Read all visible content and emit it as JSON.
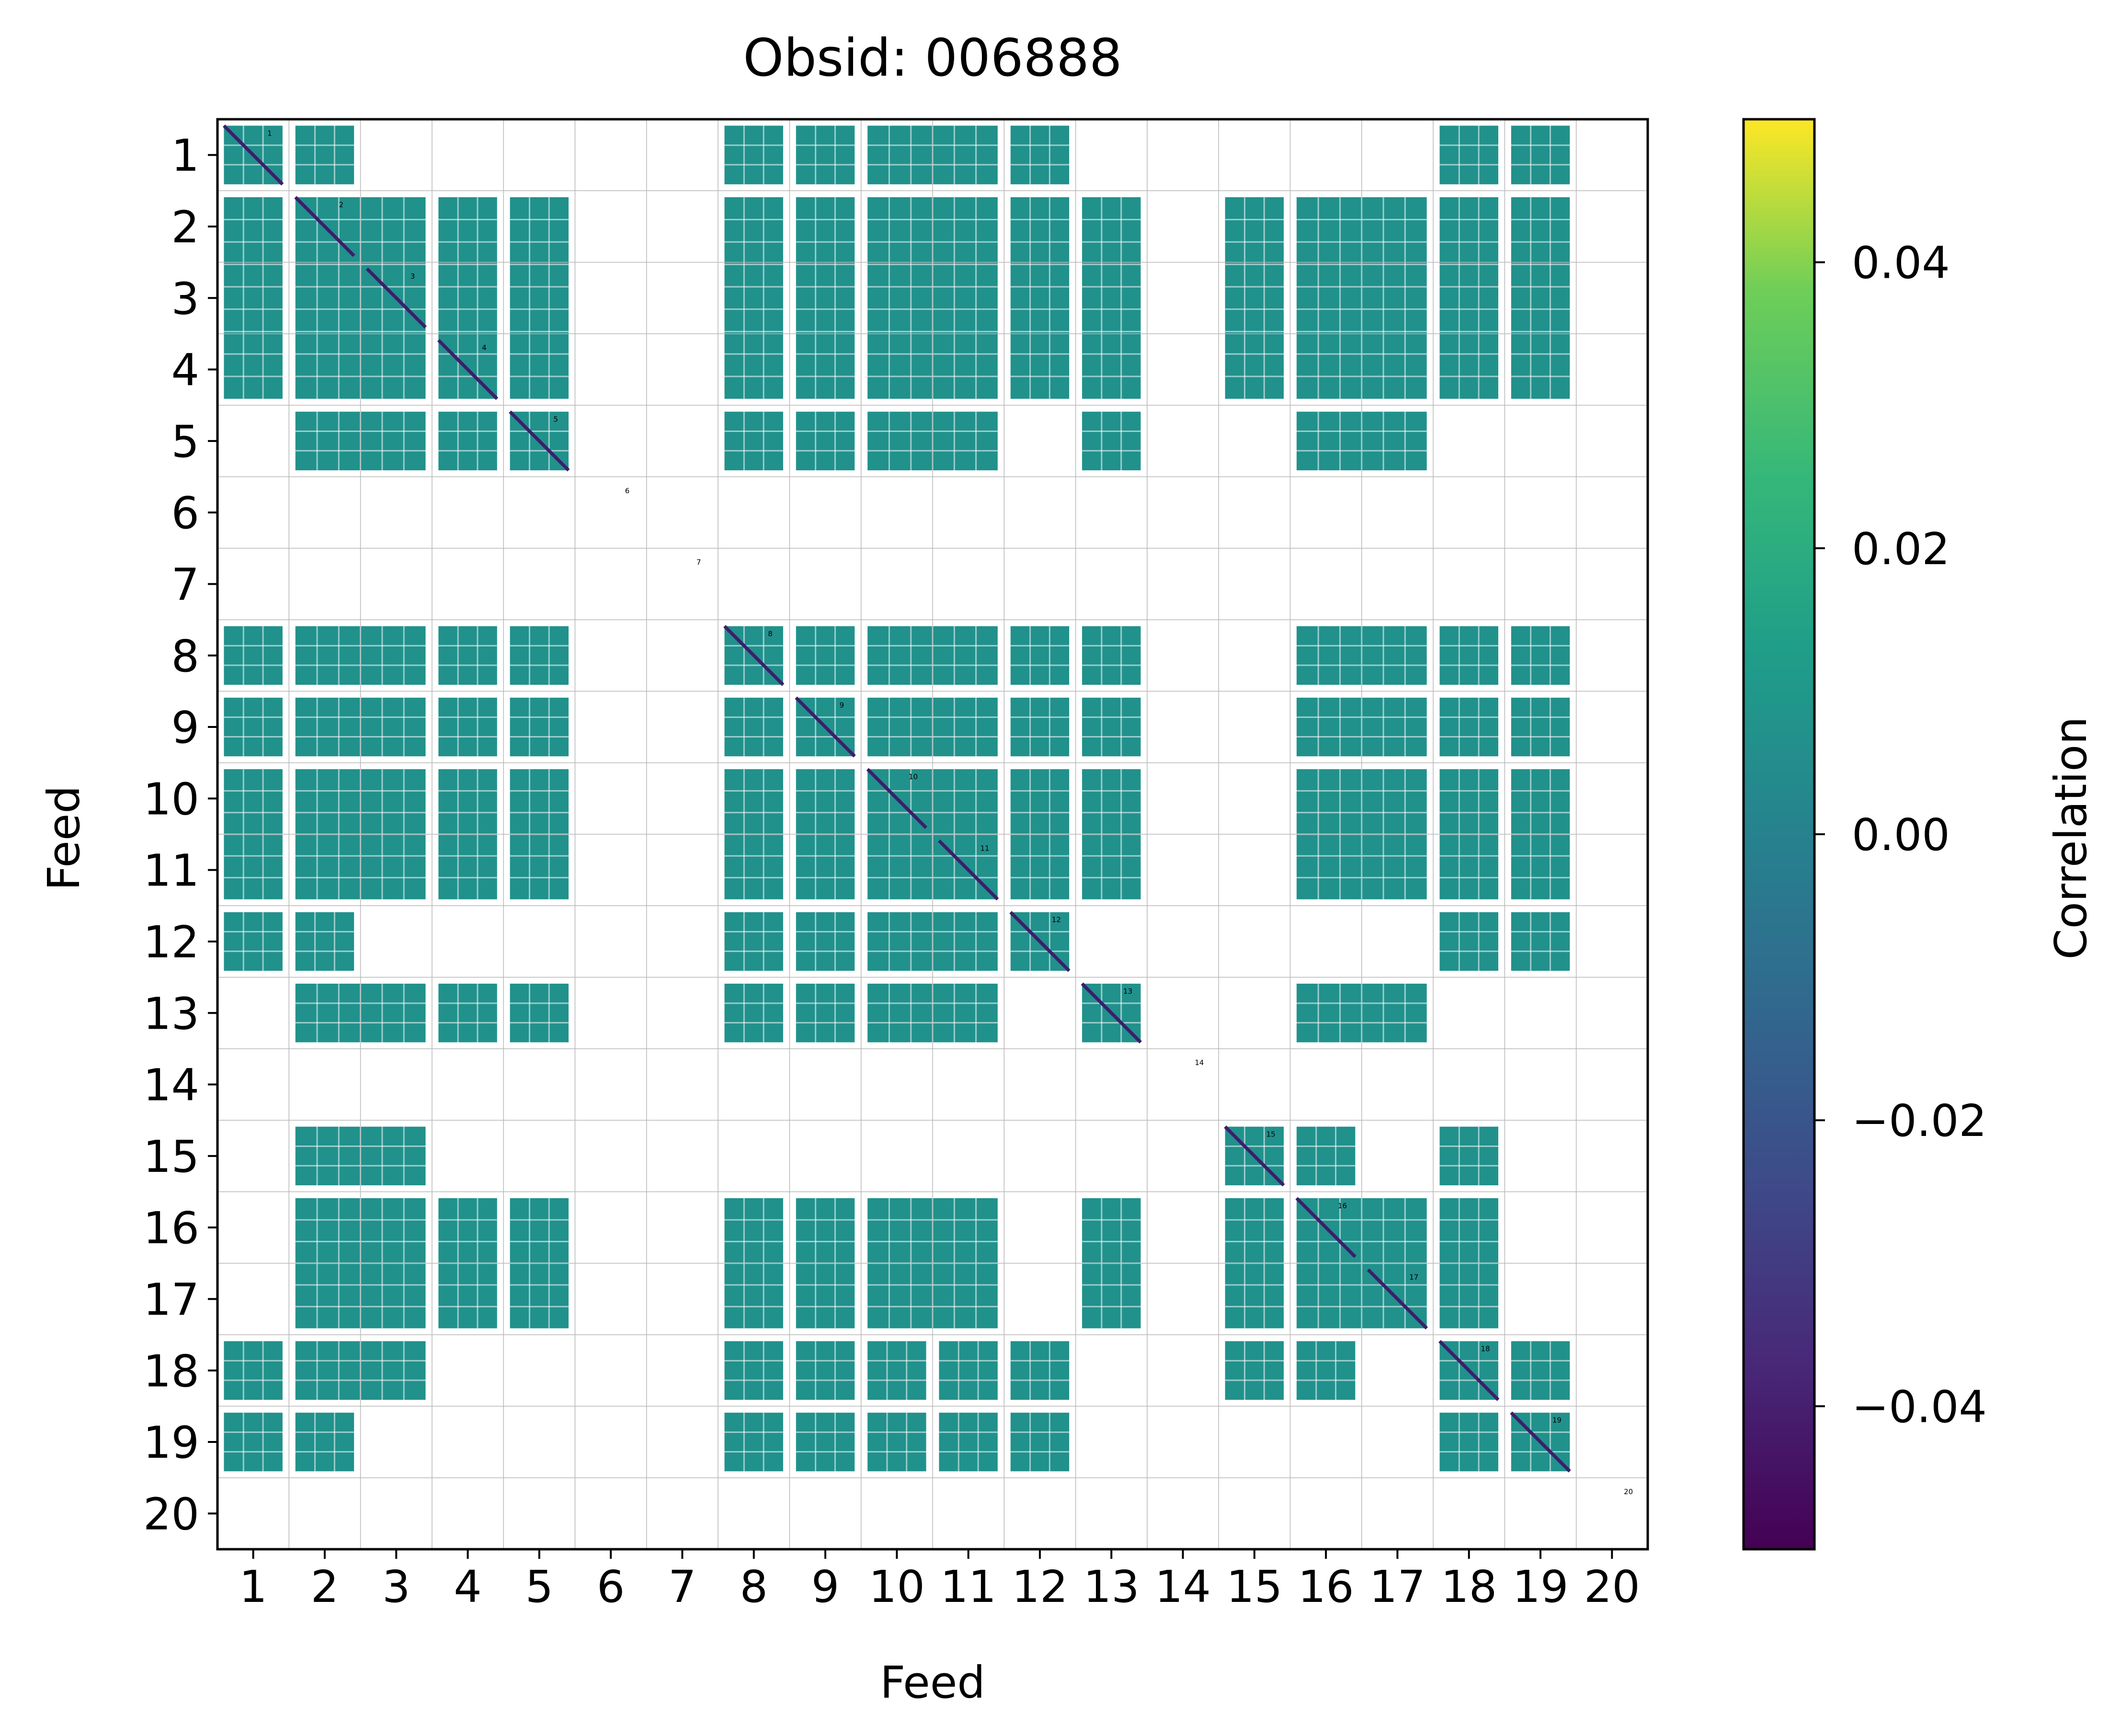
{
  "chart_data": {
    "type": "heatmap",
    "title": "Obsid: 006888",
    "xlabel": "Feed",
    "ylabel": "Feed",
    "x_tick_labels": [
      "1",
      "2",
      "3",
      "4",
      "5",
      "6",
      "7",
      "8",
      "9",
      "10",
      "11",
      "12",
      "13",
      "14",
      "15",
      "16",
      "17",
      "18",
      "19",
      "20"
    ],
    "y_tick_labels": [
      "1",
      "2",
      "3",
      "4",
      "5",
      "6",
      "7",
      "8",
      "9",
      "10",
      "11",
      "12",
      "13",
      "14",
      "15",
      "16",
      "17",
      "18",
      "19",
      "20"
    ],
    "diagonal_labels": [
      "1",
      "2",
      "3",
      "4",
      "5",
      "6",
      "7",
      "8",
      "9",
      "10",
      "11",
      "12",
      "13",
      "14",
      "15",
      "16",
      "17",
      "18",
      "19",
      "20"
    ],
    "colorbar": {
      "label": "Correlation",
      "range": [
        -0.05,
        0.05
      ],
      "ticks": [
        -0.04,
        -0.02,
        0.0,
        0.02,
        0.04
      ],
      "tick_labels": [
        "−0.04",
        "−0.02",
        "0.00",
        "0.02",
        "0.04"
      ],
      "colormap": "viridis"
    },
    "colors": {
      "zero_fill": "#21918c",
      "diagonal": "#3b1f6b",
      "grid": "#b8b8b8",
      "background": "#ffffff"
    },
    "active_feeds": [
      1,
      2,
      3,
      4,
      5,
      8,
      9,
      10,
      11,
      12,
      13,
      15,
      16,
      17,
      18,
      19
    ],
    "inactive_feeds": [
      6,
      7,
      14,
      20
    ],
    "blocks": [
      {
        "rows": [
          1,
          1
        ],
        "cols": [
          1,
          1
        ]
      },
      {
        "rows": [
          1,
          1
        ],
        "cols": [
          2,
          2
        ]
      },
      {
        "rows": [
          1,
          1
        ],
        "cols": [
          8,
          8
        ]
      },
      {
        "rows": [
          1,
          1
        ],
        "cols": [
          9,
          9
        ]
      },
      {
        "rows": [
          1,
          1
        ],
        "cols": [
          10,
          11
        ]
      },
      {
        "rows": [
          1,
          1
        ],
        "cols": [
          12,
          12
        ]
      },
      {
        "rows": [
          1,
          1
        ],
        "cols": [
          18,
          18
        ]
      },
      {
        "rows": [
          1,
          1
        ],
        "cols": [
          19,
          19
        ]
      },
      {
        "rows": [
          2,
          4
        ],
        "cols": [
          1,
          1
        ]
      },
      {
        "rows": [
          2,
          4
        ],
        "cols": [
          2,
          3
        ]
      },
      {
        "rows": [
          2,
          4
        ],
        "cols": [
          4,
          4
        ]
      },
      {
        "rows": [
          2,
          4
        ],
        "cols": [
          5,
          5
        ]
      },
      {
        "rows": [
          2,
          4
        ],
        "cols": [
          8,
          8
        ]
      },
      {
        "rows": [
          2,
          4
        ],
        "cols": [
          9,
          9
        ]
      },
      {
        "rows": [
          2,
          4
        ],
        "cols": [
          10,
          11
        ]
      },
      {
        "rows": [
          2,
          4
        ],
        "cols": [
          12,
          12
        ]
      },
      {
        "rows": [
          2,
          4
        ],
        "cols": [
          13,
          13
        ]
      },
      {
        "rows": [
          2,
          4
        ],
        "cols": [
          15,
          15
        ]
      },
      {
        "rows": [
          2,
          4
        ],
        "cols": [
          16,
          17
        ]
      },
      {
        "rows": [
          2,
          4
        ],
        "cols": [
          18,
          18
        ]
      },
      {
        "rows": [
          2,
          4
        ],
        "cols": [
          19,
          19
        ]
      },
      {
        "rows": [
          5,
          5
        ],
        "cols": [
          2,
          3
        ]
      },
      {
        "rows": [
          5,
          5
        ],
        "cols": [
          4,
          4
        ]
      },
      {
        "rows": [
          5,
          5
        ],
        "cols": [
          5,
          5
        ]
      },
      {
        "rows": [
          5,
          5
        ],
        "cols": [
          8,
          8
        ]
      },
      {
        "rows": [
          5,
          5
        ],
        "cols": [
          9,
          9
        ]
      },
      {
        "rows": [
          5,
          5
        ],
        "cols": [
          10,
          11
        ]
      },
      {
        "rows": [
          5,
          5
        ],
        "cols": [
          13,
          13
        ]
      },
      {
        "rows": [
          5,
          5
        ],
        "cols": [
          16,
          17
        ]
      },
      {
        "rows": [
          8,
          8
        ],
        "cols": [
          1,
          1
        ]
      },
      {
        "rows": [
          8,
          8
        ],
        "cols": [
          2,
          3
        ]
      },
      {
        "rows": [
          8,
          8
        ],
        "cols": [
          4,
          4
        ]
      },
      {
        "rows": [
          8,
          8
        ],
        "cols": [
          5,
          5
        ]
      },
      {
        "rows": [
          8,
          8
        ],
        "cols": [
          8,
          8
        ]
      },
      {
        "rows": [
          8,
          8
        ],
        "cols": [
          9,
          9
        ]
      },
      {
        "rows": [
          8,
          8
        ],
        "cols": [
          10,
          11
        ]
      },
      {
        "rows": [
          8,
          8
        ],
        "cols": [
          12,
          12
        ]
      },
      {
        "rows": [
          8,
          8
        ],
        "cols": [
          13,
          13
        ]
      },
      {
        "rows": [
          8,
          8
        ],
        "cols": [
          16,
          17
        ]
      },
      {
        "rows": [
          8,
          8
        ],
        "cols": [
          18,
          18
        ]
      },
      {
        "rows": [
          8,
          8
        ],
        "cols": [
          19,
          19
        ]
      },
      {
        "rows": [
          9,
          9
        ],
        "cols": [
          1,
          1
        ]
      },
      {
        "rows": [
          9,
          9
        ],
        "cols": [
          2,
          3
        ]
      },
      {
        "rows": [
          9,
          9
        ],
        "cols": [
          4,
          4
        ]
      },
      {
        "rows": [
          9,
          9
        ],
        "cols": [
          5,
          5
        ]
      },
      {
        "rows": [
          9,
          9
        ],
        "cols": [
          8,
          8
        ]
      },
      {
        "rows": [
          9,
          9
        ],
        "cols": [
          9,
          9
        ]
      },
      {
        "rows": [
          9,
          9
        ],
        "cols": [
          10,
          11
        ]
      },
      {
        "rows": [
          9,
          9
        ],
        "cols": [
          12,
          12
        ]
      },
      {
        "rows": [
          9,
          9
        ],
        "cols": [
          13,
          13
        ]
      },
      {
        "rows": [
          9,
          9
        ],
        "cols": [
          16,
          17
        ]
      },
      {
        "rows": [
          9,
          9
        ],
        "cols": [
          18,
          18
        ]
      },
      {
        "rows": [
          9,
          9
        ],
        "cols": [
          19,
          19
        ]
      },
      {
        "rows": [
          10,
          11
        ],
        "cols": [
          1,
          1
        ]
      },
      {
        "rows": [
          10,
          11
        ],
        "cols": [
          2,
          3
        ]
      },
      {
        "rows": [
          10,
          11
        ],
        "cols": [
          4,
          4
        ]
      },
      {
        "rows": [
          10,
          11
        ],
        "cols": [
          5,
          5
        ]
      },
      {
        "rows": [
          10,
          11
        ],
        "cols": [
          8,
          8
        ]
      },
      {
        "rows": [
          10,
          11
        ],
        "cols": [
          9,
          9
        ]
      },
      {
        "rows": [
          10,
          11
        ],
        "cols": [
          10,
          11
        ]
      },
      {
        "rows": [
          10,
          11
        ],
        "cols": [
          12,
          12
        ]
      },
      {
        "rows": [
          10,
          11
        ],
        "cols": [
          13,
          13
        ]
      },
      {
        "rows": [
          10,
          11
        ],
        "cols": [
          16,
          17
        ]
      },
      {
        "rows": [
          10,
          11
        ],
        "cols": [
          18,
          18
        ]
      },
      {
        "rows": [
          10,
          11
        ],
        "cols": [
          19,
          19
        ]
      },
      {
        "rows": [
          12,
          12
        ],
        "cols": [
          1,
          1
        ]
      },
      {
        "rows": [
          12,
          12
        ],
        "cols": [
          2,
          2
        ]
      },
      {
        "rows": [
          12,
          12
        ],
        "cols": [
          8,
          8
        ]
      },
      {
        "rows": [
          12,
          12
        ],
        "cols": [
          9,
          9
        ]
      },
      {
        "rows": [
          12,
          12
        ],
        "cols": [
          10,
          11
        ]
      },
      {
        "rows": [
          12,
          12
        ],
        "cols": [
          12,
          12
        ]
      },
      {
        "rows": [
          12,
          12
        ],
        "cols": [
          18,
          18
        ]
      },
      {
        "rows": [
          12,
          12
        ],
        "cols": [
          19,
          19
        ]
      },
      {
        "rows": [
          13,
          13
        ],
        "cols": [
          2,
          3
        ]
      },
      {
        "rows": [
          13,
          13
        ],
        "cols": [
          4,
          4
        ]
      },
      {
        "rows": [
          13,
          13
        ],
        "cols": [
          5,
          5
        ]
      },
      {
        "rows": [
          13,
          13
        ],
        "cols": [
          8,
          8
        ]
      },
      {
        "rows": [
          13,
          13
        ],
        "cols": [
          9,
          9
        ]
      },
      {
        "rows": [
          13,
          13
        ],
        "cols": [
          10,
          11
        ]
      },
      {
        "rows": [
          13,
          13
        ],
        "cols": [
          13,
          13
        ]
      },
      {
        "rows": [
          13,
          13
        ],
        "cols": [
          16,
          17
        ]
      },
      {
        "rows": [
          15,
          15
        ],
        "cols": [
          2,
          3
        ]
      },
      {
        "rows": [
          15,
          15
        ],
        "cols": [
          15,
          15
        ]
      },
      {
        "rows": [
          15,
          15
        ],
        "cols": [
          16,
          16
        ]
      },
      {
        "rows": [
          15,
          15
        ],
        "cols": [
          18,
          18
        ]
      },
      {
        "rows": [
          16,
          17
        ],
        "cols": [
          2,
          3
        ]
      },
      {
        "rows": [
          16,
          17
        ],
        "cols": [
          4,
          4
        ]
      },
      {
        "rows": [
          16,
          17
        ],
        "cols": [
          5,
          5
        ]
      },
      {
        "rows": [
          16,
          17
        ],
        "cols": [
          8,
          8
        ]
      },
      {
        "rows": [
          16,
          17
        ],
        "cols": [
          9,
          9
        ]
      },
      {
        "rows": [
          16,
          17
        ],
        "cols": [
          10,
          11
        ]
      },
      {
        "rows": [
          16,
          17
        ],
        "cols": [
          13,
          13
        ]
      },
      {
        "rows": [
          16,
          17
        ],
        "cols": [
          15,
          15
        ]
      },
      {
        "rows": [
          16,
          17
        ],
        "cols": [
          16,
          17
        ]
      },
      {
        "rows": [
          16,
          17
        ],
        "cols": [
          18,
          18
        ]
      },
      {
        "rows": [
          18,
          18
        ],
        "cols": [
          1,
          1
        ]
      },
      {
        "rows": [
          18,
          18
        ],
        "cols": [
          2,
          3
        ]
      },
      {
        "rows": [
          18,
          18
        ],
        "cols": [
          8,
          8
        ]
      },
      {
        "rows": [
          18,
          18
        ],
        "cols": [
          9,
          9
        ]
      },
      {
        "rows": [
          18,
          18
        ],
        "cols": [
          10,
          10
        ]
      },
      {
        "rows": [
          18,
          18
        ],
        "cols": [
          11,
          11
        ]
      },
      {
        "rows": [
          18,
          18
        ],
        "cols": [
          12,
          12
        ]
      },
      {
        "rows": [
          18,
          18
        ],
        "cols": [
          15,
          15
        ]
      },
      {
        "rows": [
          18,
          18
        ],
        "cols": [
          16,
          16
        ]
      },
      {
        "rows": [
          18,
          18
        ],
        "cols": [
          18,
          18
        ]
      },
      {
        "rows": [
          18,
          18
        ],
        "cols": [
          19,
          19
        ]
      },
      {
        "rows": [
          19,
          19
        ],
        "cols": [
          1,
          1
        ]
      },
      {
        "rows": [
          19,
          19
        ],
        "cols": [
          2,
          2
        ]
      },
      {
        "rows": [
          19,
          19
        ],
        "cols": [
          8,
          8
        ]
      },
      {
        "rows": [
          19,
          19
        ],
        "cols": [
          9,
          9
        ]
      },
      {
        "rows": [
          19,
          19
        ],
        "cols": [
          10,
          10
        ]
      },
      {
        "rows": [
          19,
          19
        ],
        "cols": [
          11,
          11
        ]
      },
      {
        "rows": [
          19,
          19
        ],
        "cols": [
          12,
          12
        ]
      },
      {
        "rows": [
          19,
          19
        ],
        "cols": [
          18,
          18
        ]
      },
      {
        "rows": [
          19,
          19
        ],
        "cols": [
          19,
          19
        ]
      }
    ]
  }
}
